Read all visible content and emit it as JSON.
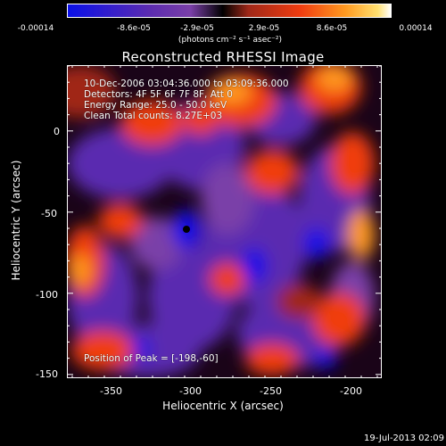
{
  "colorbar": {
    "ticks": [
      "-0.00014",
      "-8.6e-05",
      "-2.9e-05",
      "2.9e-05",
      "8.6e-05",
      "0.00014"
    ],
    "units": "(photons cm⁻² s⁻¹ asec⁻²)"
  },
  "title": "Reconstructed RHESSI Image",
  "annotations": {
    "time_range": "10-Dec-2006 03:04:36.000 to 03:09:36.000",
    "detectors": "Detectors: 4F 5F 6F 7F 8F, Att 0",
    "energy_range": "Energy Range: 25.0 - 50.0 keV",
    "clean_counts": "Clean     Total counts: 8.27E+03",
    "peak_position": "Position of Peak = [-198,-60]"
  },
  "axes": {
    "xlabel": "Heliocentric X (arcsec)",
    "ylabel": "Heliocentric Y (arcsec)",
    "xticks": [
      "-350",
      "-300",
      "-250",
      "-200"
    ],
    "yticks": [
      "0",
      "-50",
      "-100",
      "-150"
    ]
  },
  "footer": {
    "date": "19-Jul-2013 02:09"
  },
  "palette": {
    "negative_deep": "#0a10e8",
    "negative_mid": "#5a2bb0",
    "negative_light": "#7a3fa8",
    "zero": "#000000",
    "positive_low": "#a02818",
    "positive_mid": "#f03c10",
    "positive_high": "#ff9a20",
    "positive_peak": "#ffe070"
  }
}
